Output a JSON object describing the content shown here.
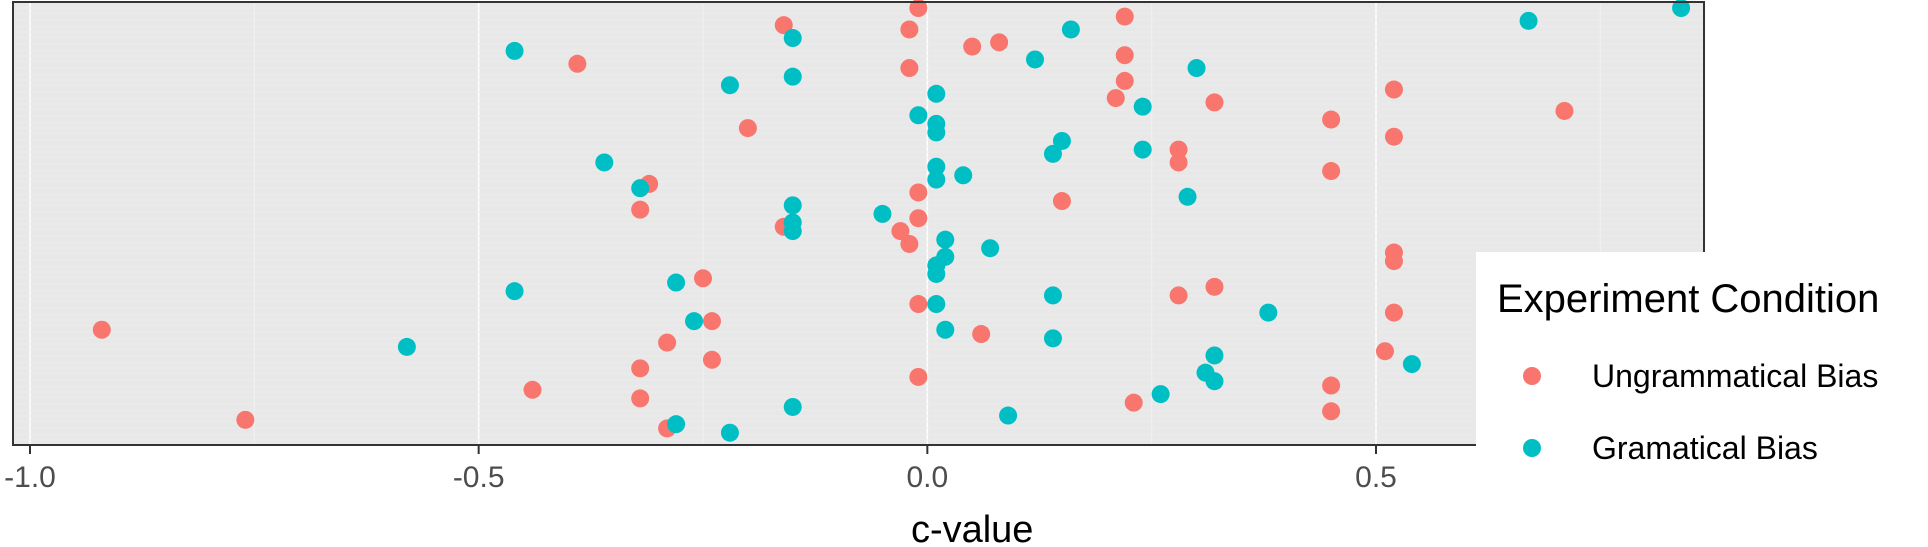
{
  "chart_data": {
    "type": "scatter",
    "xlabel": "c-value",
    "ylabel": "",
    "xlim": [
      -1.0,
      0.7
    ],
    "x_ticks": [
      -1.0,
      -0.5,
      0.0,
      0.5
    ],
    "x_tick_labels": [
      "-1.0",
      "-0.5",
      "0.0",
      "0.5"
    ],
    "grid": true,
    "y_axis_shown": false,
    "legend": {
      "title": "Experiment Condition",
      "placement": "right",
      "entries": [
        "Ungrammatical Bias",
        "Gramatical Bias"
      ]
    },
    "series": [
      {
        "name": "Ungrammatical Bias",
        "color": "#F8766D",
        "points": [
          {
            "x": -0.16,
            "y": 0.96
          },
          {
            "x": -0.02,
            "y": 0.95
          },
          {
            "x": -0.01,
            "y": 1.0
          },
          {
            "x": 0.05,
            "y": 0.91
          },
          {
            "x": 0.08,
            "y": 0.92
          },
          {
            "x": 0.22,
            "y": 0.98
          },
          {
            "x": -0.39,
            "y": 0.87
          },
          {
            "x": -0.02,
            "y": 0.86
          },
          {
            "x": 0.22,
            "y": 0.89
          },
          {
            "x": 0.22,
            "y": 0.83
          },
          {
            "x": 0.21,
            "y": 0.79
          },
          {
            "x": 0.32,
            "y": 0.78
          },
          {
            "x": 0.52,
            "y": 0.81
          },
          {
            "x": 0.71,
            "y": 0.76
          },
          {
            "x": 0.45,
            "y": 0.74
          },
          {
            "x": 0.52,
            "y": 0.7
          },
          {
            "x": -0.2,
            "y": 0.72
          },
          {
            "x": 0.28,
            "y": 0.67
          },
          {
            "x": 0.28,
            "y": 0.64
          },
          {
            "x": 0.45,
            "y": 0.62
          },
          {
            "x": -0.31,
            "y": 0.59
          },
          {
            "x": -0.32,
            "y": 0.53
          },
          {
            "x": -0.01,
            "y": 0.57
          },
          {
            "x": -0.01,
            "y": 0.51
          },
          {
            "x": 0.15,
            "y": 0.55
          },
          {
            "x": -0.16,
            "y": 0.49
          },
          {
            "x": -0.03,
            "y": 0.48
          },
          {
            "x": -0.02,
            "y": 0.45
          },
          {
            "x": 0.52,
            "y": 0.43
          },
          {
            "x": 0.52,
            "y": 0.41
          },
          {
            "x": -0.25,
            "y": 0.37
          },
          {
            "x": 0.32,
            "y": 0.35
          },
          {
            "x": 0.28,
            "y": 0.33
          },
          {
            "x": -0.01,
            "y": 0.31
          },
          {
            "x": 0.52,
            "y": 0.29
          },
          {
            "x": -0.24,
            "y": 0.27
          },
          {
            "x": 0.06,
            "y": 0.24
          },
          {
            "x": -0.92,
            "y": 0.25
          },
          {
            "x": -0.29,
            "y": 0.22
          },
          {
            "x": 0.51,
            "y": 0.2
          },
          {
            "x": -0.24,
            "y": 0.18
          },
          {
            "x": -0.32,
            "y": 0.16
          },
          {
            "x": -0.01,
            "y": 0.14
          },
          {
            "x": -0.44,
            "y": 0.11
          },
          {
            "x": 0.45,
            "y": 0.12
          },
          {
            "x": -0.32,
            "y": 0.09
          },
          {
            "x": 0.23,
            "y": 0.08
          },
          {
            "x": 0.45,
            "y": 0.06
          },
          {
            "x": -0.76,
            "y": 0.04
          },
          {
            "x": -0.29,
            "y": 0.02
          }
        ]
      },
      {
        "name": "Gramatical Bias",
        "color": "#00BFC4",
        "points": [
          {
            "x": -0.15,
            "y": 0.93
          },
          {
            "x": 0.16,
            "y": 0.95
          },
          {
            "x": 0.67,
            "y": 0.97
          },
          {
            "x": 0.84,
            "y": 1.0
          },
          {
            "x": -0.46,
            "y": 0.9
          },
          {
            "x": 0.12,
            "y": 0.88
          },
          {
            "x": 0.3,
            "y": 0.86
          },
          {
            "x": -0.15,
            "y": 0.84
          },
          {
            "x": -0.22,
            "y": 0.82
          },
          {
            "x": 0.01,
            "y": 0.8
          },
          {
            "x": 0.24,
            "y": 0.77
          },
          {
            "x": -0.01,
            "y": 0.75
          },
          {
            "x": 0.01,
            "y": 0.73
          },
          {
            "x": 0.01,
            "y": 0.71
          },
          {
            "x": 0.15,
            "y": 0.69
          },
          {
            "x": 0.14,
            "y": 0.66
          },
          {
            "x": 0.24,
            "y": 0.67
          },
          {
            "x": -0.36,
            "y": 0.64
          },
          {
            "x": 0.01,
            "y": 0.63
          },
          {
            "x": 0.04,
            "y": 0.61
          },
          {
            "x": 0.01,
            "y": 0.6
          },
          {
            "x": -0.32,
            "y": 0.58
          },
          {
            "x": 0.29,
            "y": 0.56
          },
          {
            "x": -0.15,
            "y": 0.54
          },
          {
            "x": -0.05,
            "y": 0.52
          },
          {
            "x": -0.15,
            "y": 0.5
          },
          {
            "x": -0.15,
            "y": 0.48
          },
          {
            "x": 0.02,
            "y": 0.46
          },
          {
            "x": 0.07,
            "y": 0.44
          },
          {
            "x": 0.02,
            "y": 0.42
          },
          {
            "x": 0.01,
            "y": 0.4
          },
          {
            "x": 0.01,
            "y": 0.38
          },
          {
            "x": -0.28,
            "y": 0.36
          },
          {
            "x": -0.46,
            "y": 0.34
          },
          {
            "x": 0.14,
            "y": 0.33
          },
          {
            "x": 0.01,
            "y": 0.31
          },
          {
            "x": 0.38,
            "y": 0.29
          },
          {
            "x": -0.26,
            "y": 0.27
          },
          {
            "x": 0.02,
            "y": 0.25
          },
          {
            "x": 0.14,
            "y": 0.23
          },
          {
            "x": -0.58,
            "y": 0.21
          },
          {
            "x": 0.32,
            "y": 0.19
          },
          {
            "x": 0.54,
            "y": 0.17
          },
          {
            "x": 0.31,
            "y": 0.15
          },
          {
            "x": 0.32,
            "y": 0.13
          },
          {
            "x": 0.26,
            "y": 0.1
          },
          {
            "x": -0.15,
            "y": 0.07
          },
          {
            "x": 0.09,
            "y": 0.05
          },
          {
            "x": -0.28,
            "y": 0.03
          },
          {
            "x": -0.22,
            "y": 0.01
          }
        ]
      }
    ]
  }
}
